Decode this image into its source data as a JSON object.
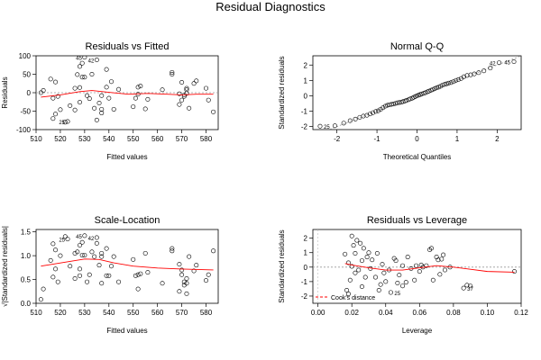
{
  "title": "Residual Diagnostics",
  "chart_data": [
    {
      "type": "scatter",
      "title": "Residuals vs Fitted",
      "xlabel": "Fitted values",
      "ylabel": "Residuals",
      "xlim": [
        510,
        585
      ],
      "ylim": [
        -100,
        100
      ],
      "xticks": [
        510,
        520,
        530,
        540,
        550,
        560,
        570,
        580
      ],
      "yticks": [
        -100,
        -50,
        0,
        50,
        100
      ],
      "reference_line": 0,
      "smooth": {
        "x": [
          512,
          520,
          528,
          533,
          540,
          548,
          556,
          564,
          570,
          576,
          583
        ],
        "y": [
          -12,
          -6,
          3,
          6,
          1,
          -4,
          -2,
          -4,
          -6,
          -4,
          -4
        ]
      },
      "points": [
        [
          512,
          0
        ],
        [
          513,
          6
        ],
        [
          516,
          37
        ],
        [
          517,
          -70
        ],
        [
          517,
          -15
        ],
        [
          518,
          -58
        ],
        [
          518,
          29
        ],
        [
          519,
          -10
        ],
        [
          520,
          -46
        ],
        [
          522,
          -80
        ],
        [
          523,
          -78
        ],
        [
          524,
          -35
        ],
        [
          526,
          12
        ],
        [
          526,
          -47
        ],
        [
          527,
          49
        ],
        [
          528,
          71
        ],
        [
          528,
          14
        ],
        [
          528,
          -26
        ],
        [
          529,
          42
        ],
        [
          529,
          80
        ],
        [
          530,
          42
        ],
        [
          530,
          96
        ],
        [
          531,
          -8
        ],
        [
          532,
          -16
        ],
        [
          533,
          50
        ],
        [
          534,
          -42
        ],
        [
          535,
          89
        ],
        [
          535,
          -74
        ],
        [
          536,
          -28
        ],
        [
          537,
          -45
        ],
        [
          537,
          -55
        ],
        [
          537,
          -8
        ],
        [
          539,
          15
        ],
        [
          539,
          63
        ],
        [
          540,
          -15
        ],
        [
          541,
          30
        ],
        [
          542,
          -45
        ],
        [
          544,
          9
        ],
        [
          550,
          -38
        ],
        [
          551,
          -15
        ],
        [
          552,
          -4
        ],
        [
          552,
          15
        ],
        [
          553,
          18
        ],
        [
          555,
          -44
        ],
        [
          556,
          -18
        ],
        [
          562,
          8
        ],
        [
          566,
          50
        ],
        [
          566,
          55
        ],
        [
          569,
          -32
        ],
        [
          569,
          -3
        ],
        [
          570,
          28
        ],
        [
          570,
          -20
        ],
        [
          571,
          -10
        ],
        [
          571,
          -6
        ],
        [
          572,
          -2
        ],
        [
          572,
          8
        ],
        [
          572,
          12
        ],
        [
          573,
          -42
        ],
        [
          575,
          25
        ],
        [
          576,
          32
        ],
        [
          580,
          12
        ],
        [
          581,
          -20
        ],
        [
          583,
          -52
        ]
      ],
      "labeled_points": [
        {
          "label": "25",
          "x": 523,
          "y": -78
        },
        {
          "label": "45",
          "x": 530,
          "y": 96
        },
        {
          "label": "42",
          "x": 535,
          "y": 89
        }
      ]
    },
    {
      "type": "scatter",
      "title": "Normal Q-Q",
      "xlabel": "Theoretical Quantiles",
      "ylabel": "Standardized residuals",
      "xlim": [
        -2.6,
        2.6
      ],
      "ylim": [
        -2.2,
        2.6
      ],
      "xticks": [
        -2,
        -1,
        0,
        1,
        2
      ],
      "yticks": [
        -2,
        -1,
        0,
        1,
        2
      ],
      "reference_line": "y=x",
      "points": [
        [
          -2.42,
          -1.98
        ],
        [
          -2.05,
          -1.95
        ],
        [
          -1.83,
          -1.78
        ],
        [
          -1.67,
          -1.62
        ],
        [
          -1.54,
          -1.52
        ],
        [
          -1.43,
          -1.4
        ],
        [
          -1.34,
          -1.32
        ],
        [
          -1.25,
          -1.27
        ],
        [
          -1.17,
          -1.18
        ],
        [
          -1.1,
          -1.1
        ],
        [
          -1.03,
          -1.02
        ],
        [
          -0.97,
          -0.98
        ],
        [
          -0.91,
          -0.88
        ],
        [
          -0.85,
          -0.78
        ],
        [
          -0.79,
          -0.68
        ],
        [
          -0.74,
          -0.62
        ],
        [
          -0.69,
          -0.58
        ],
        [
          -0.64,
          -0.56
        ],
        [
          -0.59,
          -0.54
        ],
        [
          -0.54,
          -0.5
        ],
        [
          -0.49,
          -0.46
        ],
        [
          -0.44,
          -0.44
        ],
        [
          -0.39,
          -0.42
        ],
        [
          -0.35,
          -0.38
        ],
        [
          -0.3,
          -0.34
        ],
        [
          -0.26,
          -0.3
        ],
        [
          -0.21,
          -0.25
        ],
        [
          -0.17,
          -0.2
        ],
        [
          -0.12,
          -0.16
        ],
        [
          -0.08,
          -0.1
        ],
        [
          -0.04,
          -0.05
        ],
        [
          0,
          0
        ],
        [
          0.04,
          0.04
        ],
        [
          0.08,
          0.08
        ],
        [
          0.12,
          0.12
        ],
        [
          0.17,
          0.16
        ],
        [
          0.21,
          0.2
        ],
        [
          0.26,
          0.26
        ],
        [
          0.3,
          0.3
        ],
        [
          0.35,
          0.36
        ],
        [
          0.39,
          0.4
        ],
        [
          0.44,
          0.46
        ],
        [
          0.49,
          0.52
        ],
        [
          0.54,
          0.56
        ],
        [
          0.59,
          0.62
        ],
        [
          0.64,
          0.7
        ],
        [
          0.69,
          0.74
        ],
        [
          0.74,
          0.78
        ],
        [
          0.79,
          0.82
        ],
        [
          0.85,
          0.86
        ],
        [
          0.91,
          0.92
        ],
        [
          0.97,
          1.0
        ],
        [
          1.03,
          1.05
        ],
        [
          1.1,
          1.12
        ],
        [
          1.17,
          1.24
        ],
        [
          1.25,
          1.32
        ],
        [
          1.34,
          1.36
        ],
        [
          1.43,
          1.42
        ],
        [
          1.54,
          1.5
        ],
        [
          1.67,
          1.62
        ],
        [
          1.83,
          1.8
        ],
        [
          2.05,
          2.15
        ],
        [
          2.42,
          2.22
        ]
      ],
      "labeled_points": [
        {
          "label": "25",
          "x": -2.42,
          "y": -1.98
        },
        {
          "label": "42",
          "x": 2.05,
          "y": 2.15
        },
        {
          "label": "45",
          "x": 2.42,
          "y": 2.22
        }
      ]
    },
    {
      "type": "scatter",
      "title": "Scale-Location",
      "xlabel": "Fitted values",
      "ylabel": "√|Standardized residuals|",
      "xlim": [
        510,
        585
      ],
      "ylim": [
        0,
        1.55
      ],
      "xticks": [
        510,
        520,
        530,
        540,
        550,
        560,
        570,
        580
      ],
      "yticks": [
        0.0,
        0.5,
        1.0,
        1.5
      ],
      "smooth": {
        "x": [
          512,
          518,
          524,
          530,
          536,
          542,
          550,
          560,
          570,
          583
        ],
        "y": [
          0.78,
          0.83,
          0.88,
          0.93,
          0.92,
          0.85,
          0.78,
          0.74,
          0.72,
          0.7
        ]
      },
      "points": [
        [
          512,
          0.08
        ],
        [
          513,
          0.3
        ],
        [
          516,
          0.9
        ],
        [
          517,
          1.25
        ],
        [
          517,
          0.55
        ],
        [
          518,
          1.12
        ],
        [
          518,
          0.72
        ],
        [
          519,
          0.45
        ],
        [
          520,
          1.0
        ],
        [
          522,
          1.4
        ],
        [
          523,
          1.35
        ],
        [
          524,
          0.78
        ],
        [
          526,
          0.52
        ],
        [
          526,
          1.05
        ],
        [
          527,
          1.08
        ],
        [
          528,
          1.22
        ],
        [
          528,
          0.58
        ],
        [
          528,
          0.72
        ],
        [
          529,
          1.01
        ],
        [
          529,
          1.28
        ],
        [
          530,
          1.01
        ],
        [
          530,
          1.42
        ],
        [
          531,
          0.45
        ],
        [
          532,
          0.6
        ],
        [
          533,
          1.08
        ],
        [
          534,
          0.98
        ],
        [
          535,
          1.38
        ],
        [
          535,
          1.26
        ],
        [
          536,
          0.8
        ],
        [
          537,
          0.98
        ],
        [
          537,
          1.05
        ],
        [
          537,
          0.42
        ],
        [
          539,
          0.58
        ],
        [
          539,
          1.15
        ],
        [
          540,
          0.58
        ],
        [
          541,
          0.78
        ],
        [
          542,
          0.98
        ],
        [
          544,
          0.45
        ],
        [
          550,
          0.92
        ],
        [
          551,
          0.58
        ],
        [
          552,
          0.3
        ],
        [
          552,
          0.6
        ],
        [
          553,
          0.62
        ],
        [
          555,
          1.05
        ],
        [
          556,
          0.65
        ],
        [
          562,
          0.42
        ],
        [
          566,
          1.1
        ],
        [
          566,
          1.15
        ],
        [
          569,
          0.82
        ],
        [
          569,
          0.25
        ],
        [
          570,
          0.7
        ],
        [
          570,
          0.6
        ],
        [
          571,
          0.45
        ],
        [
          571,
          0.38
        ],
        [
          572,
          0.2
        ],
        [
          572,
          0.42
        ],
        [
          572,
          0.52
        ],
        [
          573,
          0.98
        ],
        [
          575,
          0.68
        ],
        [
          576,
          0.8
        ],
        [
          580,
          0.48
        ],
        [
          581,
          0.6
        ],
        [
          583,
          1.1
        ]
      ],
      "labeled_points": [
        {
          "label": "25",
          "x": 523,
          "y": 1.35
        },
        {
          "label": "45",
          "x": 530,
          "y": 1.42
        },
        {
          "label": "42",
          "x": 535,
          "y": 1.38
        }
      ]
    },
    {
      "type": "scatter",
      "title": "Residuals vs Leverage",
      "xlabel": "Leverage",
      "ylabel": "Standardized residuals",
      "xlim": [
        -0.003,
        0.12
      ],
      "ylim": [
        -2.5,
        2.6
      ],
      "xticks": [
        0.0,
        0.02,
        0.04,
        0.06,
        0.08,
        0.1,
        0.12
      ],
      "yticks": [
        -2,
        -1,
        0,
        1,
        2
      ],
      "reference_line": 0,
      "legend": {
        "label": "Cook's distance",
        "position": "bottom-left",
        "color": "#ff0000",
        "style": "dashed"
      },
      "smooth": {
        "x": [
          0.016,
          0.02,
          0.03,
          0.04,
          0.05,
          0.06,
          0.07,
          0.08,
          0.09,
          0.1,
          0.116
        ],
        "y": [
          0.25,
          0.15,
          -0.05,
          -0.2,
          -0.2,
          -0.05,
          0.1,
          0.0,
          -0.15,
          -0.3,
          -0.35
        ]
      },
      "points": [
        [
          0.016,
          0.9
        ],
        [
          0.017,
          -1.6
        ],
        [
          0.018,
          -1.85
        ],
        [
          0.018,
          0.3
        ],
        [
          0.019,
          -0.9
        ],
        [
          0.02,
          2.15
        ],
        [
          0.02,
          0.05
        ],
        [
          0.021,
          1.5
        ],
        [
          0.022,
          -0.4
        ],
        [
          0.022,
          0.95
        ],
        [
          0.023,
          1.85
        ],
        [
          0.024,
          -0.2
        ],
        [
          0.025,
          1.65
        ],
        [
          0.026,
          0.45
        ],
        [
          0.026,
          -1.35
        ],
        [
          0.027,
          1.3
        ],
        [
          0.028,
          -0.7
        ],
        [
          0.029,
          0.7
        ],
        [
          0.03,
          1.0
        ],
        [
          0.031,
          -0.1
        ],
        [
          0.032,
          0.5
        ],
        [
          0.034,
          -0.7
        ],
        [
          0.035,
          0.95
        ],
        [
          0.036,
          -1.6
        ],
        [
          0.037,
          -1.2
        ],
        [
          0.038,
          0.2
        ],
        [
          0.039,
          -0.4
        ],
        [
          0.04,
          -1.0
        ],
        [
          0.042,
          -0.2
        ],
        [
          0.043,
          -1.75
        ],
        [
          0.045,
          0.6
        ],
        [
          0.046,
          0.45
        ],
        [
          0.047,
          -1.1
        ],
        [
          0.048,
          -0.55
        ],
        [
          0.05,
          -1.3
        ],
        [
          0.05,
          0.1
        ],
        [
          0.052,
          -1.05
        ],
        [
          0.053,
          0.7
        ],
        [
          0.055,
          -0.1
        ],
        [
          0.057,
          -0.9
        ],
        [
          0.058,
          0.1
        ],
        [
          0.06,
          -0.3
        ],
        [
          0.061,
          0.15
        ],
        [
          0.062,
          0.0
        ],
        [
          0.064,
          0.1
        ],
        [
          0.066,
          1.2
        ],
        [
          0.067,
          1.3
        ],
        [
          0.068,
          -0.9
        ],
        [
          0.07,
          0.7
        ],
        [
          0.071,
          0.5
        ],
        [
          0.072,
          -0.5
        ],
        [
          0.073,
          0.55
        ],
        [
          0.074,
          0.85
        ],
        [
          0.075,
          -0.2
        ],
        [
          0.078,
          0.0
        ],
        [
          0.086,
          -1.45
        ],
        [
          0.088,
          -1.25
        ],
        [
          0.09,
          -1.3
        ],
        [
          0.116,
          -0.3
        ]
      ],
      "labeled_points": [
        {
          "label": "25",
          "x": 0.043,
          "y": -1.75
        },
        {
          "label": "37",
          "x": 0.086,
          "y": -1.45
        }
      ]
    }
  ]
}
